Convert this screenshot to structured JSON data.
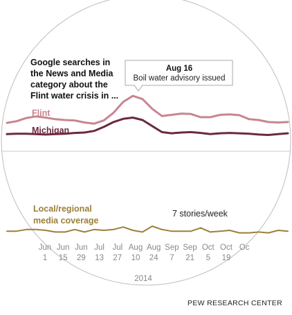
{
  "chart_data": {
    "type": "line",
    "title_lines": [
      "Google searches in",
      "the News and Media",
      "category about the",
      "Flint water crisis in ..."
    ],
    "x_tick_top": [
      "Jun",
      "Jun",
      "Jun",
      "Jul",
      "Jul",
      "Aug",
      "Aug",
      "Sep",
      "Sep",
      "Oct",
      "Oct",
      "Oc"
    ],
    "x_tick_bottom": [
      "1",
      "15",
      "29",
      "13",
      "27",
      "10",
      "24",
      "7",
      "21",
      "5",
      "19",
      ""
    ],
    "x_year_label": "2014",
    "series": [
      {
        "name": "Flint",
        "color": "#c9858f",
        "values": [
          4.3,
          4.7,
          5.5,
          5.9,
          5.6,
          5.2,
          5.0,
          4.9,
          4.4,
          4.1,
          4.9,
          6.8,
          9.5,
          11.0,
          10.2,
          7.8,
          6.0,
          6.3,
          6.6,
          6.5,
          5.7,
          5.7,
          6.3,
          6.4,
          6.2,
          5.2,
          5.0,
          4.5,
          4.4,
          4.5
        ]
      },
      {
        "name": "Michigan",
        "color": "#6b2a3e",
        "values": [
          1.5,
          1.6,
          1.6,
          1.5,
          1.4,
          1.5,
          1.6,
          1.8,
          1.9,
          2.3,
          3.3,
          4.5,
          5.3,
          5.6,
          5.0,
          3.5,
          2.0,
          1.7,
          1.9,
          2.0,
          1.8,
          1.5,
          1.7,
          1.8,
          1.7,
          1.6,
          1.4,
          1.3,
          1.5,
          1.7
        ]
      },
      {
        "name": "Local/regional\nmedia coverage",
        "color": "#9c7f38",
        "values": [
          0.4,
          0.4,
          0.6,
          0.6,
          0.5,
          0.3,
          0.3,
          0.6,
          0.3,
          0.6,
          0.5,
          0.6,
          0.9,
          0.5,
          0.3,
          1.0,
          0.6,
          0.4,
          0.4,
          0.4,
          0.8,
          0.3,
          0.4,
          0.5,
          0.2,
          0.2,
          0.3,
          0.2,
          0.5,
          0.4
        ]
      }
    ],
    "legend_labels": {
      "flint": "Flint",
      "michigan": "Michigan",
      "media_line1": "Local/regional",
      "media_line2": "media coverage"
    },
    "callout": {
      "date": "Aug 16",
      "text": "Boil water advisory issued"
    },
    "media_annotation": "7 stories/week",
    "media_peak": 7
  },
  "source": "PEW RESEARCH CENTER"
}
